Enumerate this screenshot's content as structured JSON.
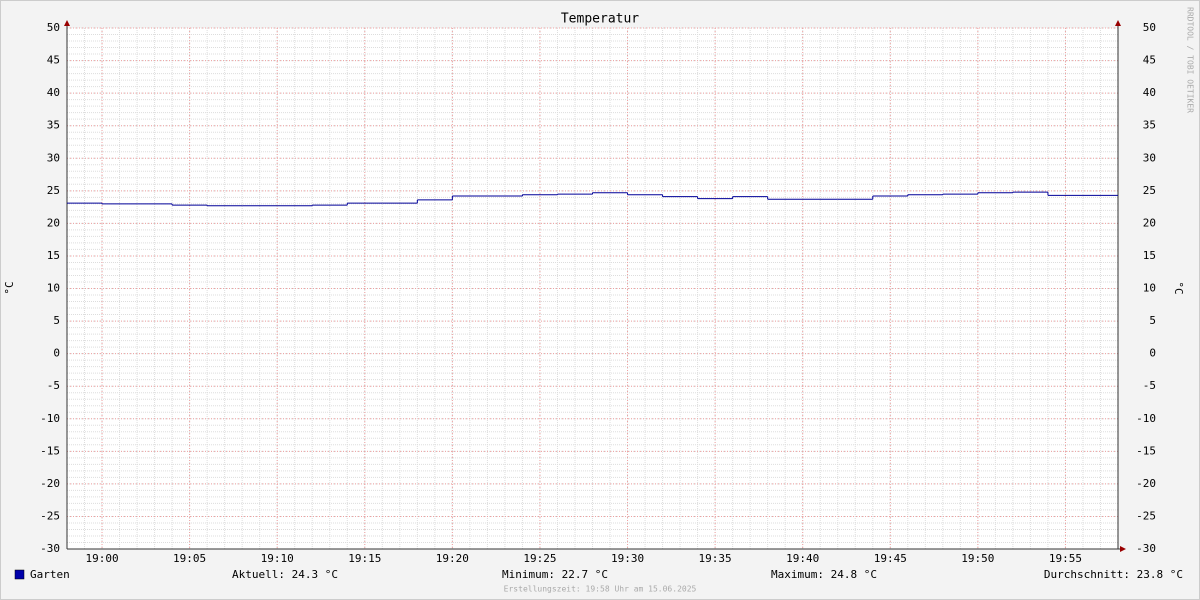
{
  "chart_data": {
    "type": "step",
    "title": "Temperatur",
    "y_label": "°C",
    "y2_label": "°C",
    "watermark": "RRDTOOL / TOBI OETIKER",
    "footer": "Erstellungszeit: 19:58 Uhr am 15.06.2025",
    "x": [
      "18:58",
      "19:00",
      "19:02",
      "19:04",
      "19:06",
      "19:08",
      "19:10",
      "19:12",
      "19:14",
      "19:16",
      "19:18",
      "19:20",
      "19:22",
      "19:24",
      "19:26",
      "19:28",
      "19:30",
      "19:32",
      "19:34",
      "19:36",
      "19:38",
      "19:40",
      "19:42",
      "19:44",
      "19:46",
      "19:48",
      "19:50",
      "19:52",
      "19:54",
      "19:56"
    ],
    "series": [
      {
        "name": "Garten",
        "color": "#000099",
        "values": [
          23.1,
          23.0,
          23.0,
          22.8,
          22.7,
          22.7,
          22.7,
          22.8,
          23.1,
          23.1,
          23.6,
          24.2,
          24.2,
          24.4,
          24.5,
          24.7,
          24.4,
          24.1,
          23.8,
          24.1,
          23.7,
          23.7,
          23.7,
          24.2,
          24.4,
          24.5,
          24.7,
          24.8,
          24.3,
          24.3
        ]
      }
    ],
    "xlim": [
      "18:58",
      "19:58"
    ],
    "xticks": [
      "19:00",
      "19:05",
      "19:10",
      "19:15",
      "19:20",
      "19:25",
      "19:30",
      "19:35",
      "19:40",
      "19:45",
      "19:50",
      "19:55"
    ],
    "ylim": [
      -30,
      50
    ],
    "yticks": [
      -30,
      -25,
      -20,
      -15,
      -10,
      -5,
      0,
      5,
      10,
      15,
      20,
      25,
      30,
      35,
      40,
      45,
      50
    ],
    "grid": true,
    "stats": [
      "Aktuell: 24.3 °C",
      "Minimum: 22.7 °C",
      "Maximum: 24.8 °C",
      "Durchschnitt: 23.8 °C"
    ]
  }
}
